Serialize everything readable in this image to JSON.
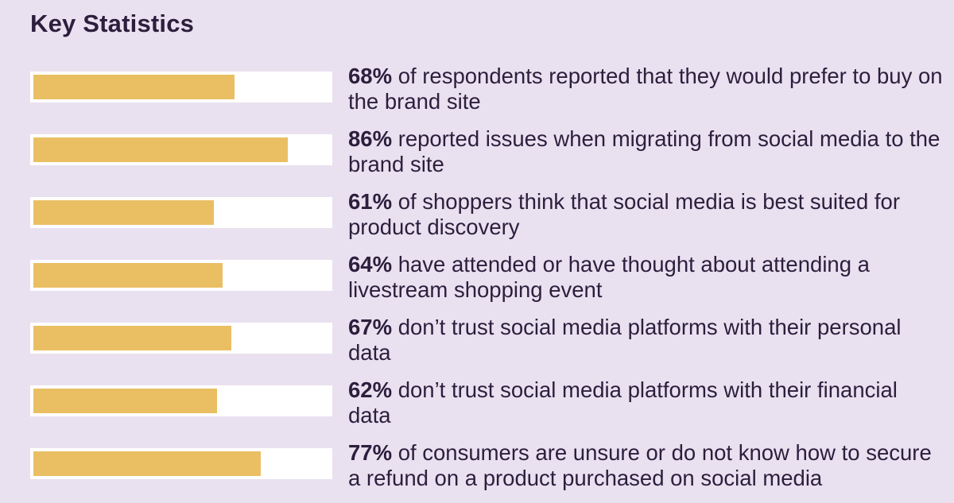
{
  "title": "Key Statistics",
  "colors": {
    "background": "#e9e1f0",
    "bar_fill": "#eabf63",
    "bar_track": "#ffffff",
    "text": "#2b1f3d"
  },
  "chart_data": {
    "type": "bar",
    "orientation": "horizontal",
    "title": "Key Statistics",
    "xlim": [
      0,
      100
    ],
    "categories": [
      "of respondents reported that they would prefer to buy on the brand site",
      "reported issues when migrating from social media to the brand site",
      "of shoppers think that social media is best suited for product discovery",
      "have attended or have thought about attending a livestream shopping event",
      "don’t trust social media platforms with their personal data",
      "don’t trust social media platforms with their financial data",
      "of consumers are unsure or do not know how to secure a refund on a product purchased on social media"
    ],
    "values": [
      68,
      86,
      61,
      64,
      67,
      62,
      77
    ],
    "value_labels": [
      "68%",
      "86%",
      "61%",
      "64%",
      "67%",
      "62%",
      "77%"
    ]
  }
}
